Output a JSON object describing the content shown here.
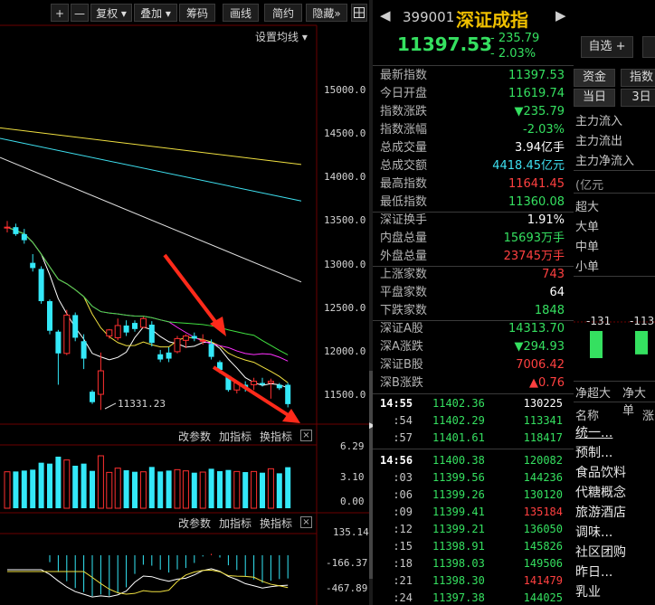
{
  "toolbar": {
    "plus": "+",
    "minus": "—",
    "fuquan": "复权",
    "diejia": "叠加",
    "chouma": "筹码",
    "huaxian": "画线",
    "jianyue": "简约",
    "yincang": "隐藏",
    "grid_icon": "grid-icon",
    "settings_ma": "设置均线"
  },
  "price_axis": [
    "15000.0",
    "14500.0",
    "14000.0",
    "13500.0",
    "13000.0",
    "12500.0",
    "12000.0",
    "11500.0"
  ],
  "low_annotation": "11331.23",
  "volume_toolbar": [
    "改参数",
    "加指标",
    "换指标"
  ],
  "volume_axis": [
    "6.29",
    "3.10",
    "0.00"
  ],
  "macd_toolbar": [
    "改参数",
    "加指标",
    "换指标"
  ],
  "macd_axis": [
    "135.14",
    "-166.37",
    "-467.89"
  ],
  "candles": [
    {
      "o": 13420,
      "h": 13500,
      "l": 13370,
      "c": 13430
    },
    {
      "o": 13430,
      "h": 13470,
      "l": 13330,
      "c": 13350
    },
    {
      "o": 13350,
      "h": 13410,
      "l": 13240,
      "c": 13280
    },
    {
      "o": 13020,
      "h": 13120,
      "l": 12920,
      "c": 12960
    },
    {
      "o": 12950,
      "h": 12980,
      "l": 12550,
      "c": 12580
    },
    {
      "o": 12580,
      "h": 12600,
      "l": 12200,
      "c": 12240
    },
    {
      "o": 12230,
      "h": 12250,
      "l": 11620,
      "c": 11980
    },
    {
      "o": 11980,
      "h": 12480,
      "l": 11960,
      "c": 12420
    },
    {
      "o": 12420,
      "h": 12450,
      "l": 12120,
      "c": 12160
    },
    {
      "o": 12120,
      "h": 12200,
      "l": 11800,
      "c": 11920
    },
    {
      "o": 11540,
      "h": 11560,
      "l": 11400,
      "c": 11420
    },
    {
      "o": 11510,
      "h": 11990,
      "l": 11331,
      "c": 11780
    },
    {
      "o": 12180,
      "h": 12260,
      "l": 12150,
      "c": 12250
    },
    {
      "o": 12160,
      "h": 12380,
      "l": 12130,
      "c": 12300
    },
    {
      "o": 12300,
      "h": 12360,
      "l": 12180,
      "c": 12220
    },
    {
      "o": 12330,
      "h": 12360,
      "l": 12230,
      "c": 12260
    },
    {
      "o": 12280,
      "h": 12400,
      "l": 12270,
      "c": 12380
    },
    {
      "o": 12310,
      "h": 12350,
      "l": 12060,
      "c": 12100
    },
    {
      "o": 11970,
      "h": 12020,
      "l": 11880,
      "c": 11910
    },
    {
      "o": 11990,
      "h": 12050,
      "l": 11880,
      "c": 11920
    },
    {
      "o": 12000,
      "h": 12180,
      "l": 11980,
      "c": 12150
    },
    {
      "o": 12130,
      "h": 12200,
      "l": 12040,
      "c": 12180
    },
    {
      "o": 12180,
      "h": 12220,
      "l": 12120,
      "c": 12150
    },
    {
      "o": 12120,
      "h": 12200,
      "l": 12080,
      "c": 12130
    },
    {
      "o": 12090,
      "h": 12140,
      "l": 11910,
      "c": 11940
    },
    {
      "o": 11880,
      "h": 11900,
      "l": 11750,
      "c": 11790
    },
    {
      "o": 11720,
      "h": 11730,
      "l": 11540,
      "c": 11560
    },
    {
      "o": 11560,
      "h": 11660,
      "l": 11520,
      "c": 11640
    },
    {
      "o": 11620,
      "h": 11660,
      "l": 11540,
      "c": 11580
    },
    {
      "o": 11620,
      "h": 11700,
      "l": 11560,
      "c": 11660
    },
    {
      "o": 11640,
      "h": 11700,
      "l": 11600,
      "c": 11620
    },
    {
      "o": 11640,
      "h": 11690,
      "l": 11460,
      "c": 11660
    },
    {
      "o": 11620,
      "h": 11640,
      "l": 11560,
      "c": 11580
    },
    {
      "o": 11619.74,
      "h": 11641.45,
      "l": 11360.08,
      "c": 11397.53
    }
  ],
  "quote": {
    "code": "399001",
    "name": "深证成指",
    "price": "11397.53",
    "change": "- 235.79",
    "change_pct": "- 2.03%",
    "watch_btn": "自选",
    "watch_plus": "+",
    "rows": [
      {
        "label": "最新指数",
        "value": "11397.53",
        "color": "green"
      },
      {
        "label": "今日开盘",
        "value": "11619.74",
        "color": "green"
      },
      {
        "label": "指数涨跌",
        "value": "▼235.79",
        "color": "green"
      },
      {
        "label": "指数涨幅",
        "value": "-2.03%",
        "color": "green"
      },
      {
        "label": "总成交量",
        "value": "3.94亿手",
        "color": "white"
      },
      {
        "label": "总成交额",
        "value": "4418.45亿元",
        "color": "cyan"
      },
      {
        "label": "最高指数",
        "value": "11641.45",
        "color": "red"
      },
      {
        "label": "最低指数",
        "value": "11360.08",
        "color": "green"
      },
      {
        "label": "深证换手",
        "value": "1.91%",
        "color": "white"
      },
      {
        "label": "内盘总量",
        "value": "15693万手",
        "color": "green"
      },
      {
        "label": "外盘总量",
        "value": "23745万手",
        "color": "red"
      },
      {
        "label": "上涨家数",
        "value": "743",
        "color": "red"
      },
      {
        "label": "平盘家数",
        "value": "64",
        "color": "white"
      },
      {
        "label": "下跌家数",
        "value": "1848",
        "color": "green"
      },
      {
        "label": "深证A股",
        "value": "14313.70",
        "color": "green"
      },
      {
        "label": "深A涨跌",
        "value": "▼294.93",
        "color": "green"
      },
      {
        "label": "深证B股",
        "value": "7006.42",
        "color": "red"
      },
      {
        "label": "深B涨跌",
        "value": "▲0.76",
        "color": "red"
      }
    ],
    "ticks": [
      {
        "time": "14:55",
        "price": "11402.36",
        "vol": "130225",
        "color": "white"
      },
      {
        "time": ":54",
        "price": "11402.29",
        "vol": "113341",
        "color": "green"
      },
      {
        "time": ":57",
        "price": "11401.61",
        "vol": "118417",
        "color": "green"
      },
      {
        "time": "14:56",
        "price": "11400.38",
        "vol": "120082",
        "color": "green"
      },
      {
        "time": ":03",
        "price": "11399.56",
        "vol": "144236",
        "color": "green"
      },
      {
        "time": ":06",
        "price": "11399.26",
        "vol": "130120",
        "color": "green"
      },
      {
        "time": ":09",
        "price": "11399.41",
        "vol": "135184",
        "color": "red"
      },
      {
        "time": ":12",
        "price": "11399.21",
        "vol": "136050",
        "color": "green"
      },
      {
        "time": ":15",
        "price": "11398.91",
        "vol": "145826",
        "color": "green"
      },
      {
        "time": ":18",
        "price": "11398.03",
        "vol": "149506",
        "color": "green"
      },
      {
        "time": ":21",
        "price": "11398.30",
        "vol": "141479",
        "color": "red"
      },
      {
        "time": ":24",
        "price": "11397.38",
        "vol": "144025",
        "color": "green"
      }
    ]
  },
  "right": {
    "tab_zijin": "资金",
    "tab_zhishu": "指数",
    "tab_dangri": "当日",
    "tab_3ri": "3日",
    "flows": [
      "主力流入",
      "主力流出",
      "主力净流入"
    ],
    "unit": "(亿元",
    "sizes": [
      "超大",
      "大单",
      "中单",
      "小单"
    ],
    "bar_labels": [
      "-131",
      "-113"
    ],
    "bar_values": [
      -131,
      -113
    ],
    "net_labels": [
      "净超大",
      "净大单"
    ],
    "sector_header": "名称",
    "sector_header2": "涨",
    "sectors": [
      "统一...",
      "预制...",
      "食品饮料",
      "代糖概念",
      "旅游酒店",
      "调味...",
      "社区团购",
      "昨日...",
      "乳业"
    ]
  }
}
